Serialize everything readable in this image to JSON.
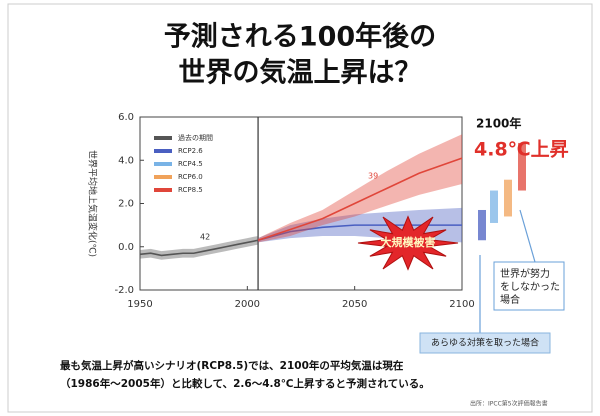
{
  "chart_data": {
    "type": "line",
    "title_lines": [
      "予測される100年後の",
      "世界の気温上昇は？"
    ],
    "y_label": "世界平均地上気温変化(℃)",
    "xlim": [
      1950,
      2100
    ],
    "xticks": [
      1950,
      2000,
      2050,
      2100
    ],
    "ylim": [
      -2,
      6
    ],
    "yticks": [
      {
        "value": 6,
        "label": "6.0"
      },
      {
        "value": 4,
        "label": "4.0"
      },
      {
        "value": 2,
        "label": "2.0"
      },
      {
        "value": 0,
        "label": "0.0"
      },
      {
        "value": -2,
        "label": "-2.0"
      }
    ],
    "divider_x": 2005,
    "series": [
      {
        "name": "過去の期間",
        "color": "#555555",
        "x": [
          1950,
          1955,
          1960,
          1965,
          1970,
          1975,
          1980,
          1985,
          1990,
          1995,
          2000,
          2005
        ],
        "values": [
          -0.35,
          -0.3,
          -0.4,
          -0.35,
          -0.3,
          -0.3,
          -0.2,
          -0.1,
          0.0,
          0.1,
          0.2,
          0.3
        ],
        "lower": [
          -0.55,
          -0.5,
          -0.6,
          -0.55,
          -0.5,
          -0.5,
          -0.4,
          -0.3,
          -0.2,
          -0.1,
          0.0,
          0.1
        ],
        "upper": [
          -0.15,
          -0.1,
          -0.2,
          -0.15,
          -0.1,
          -0.1,
          0.0,
          0.1,
          0.2,
          0.3,
          0.4,
          0.5
        ]
      },
      {
        "name": "RCP2.6",
        "color": "#4a5fc1",
        "x": [
          2005,
          2020,
          2035,
          2050,
          2065,
          2080,
          2100
        ],
        "values": [
          0.3,
          0.7,
          0.9,
          1.0,
          1.0,
          1.0,
          1.0
        ],
        "lower": [
          0.2,
          0.4,
          0.5,
          0.5,
          0.4,
          0.3,
          0.2
        ],
        "upper": [
          0.4,
          1.0,
          1.3,
          1.5,
          1.6,
          1.7,
          1.8
        ],
        "range_2100": [
          0.3,
          1.7
        ]
      },
      {
        "name": "RCP4.5",
        "color": "#79b3e6",
        "range_2100": [
          1.1,
          2.6
        ]
      },
      {
        "name": "RCP6.0",
        "color": "#f0a25a",
        "range_2100": [
          1.4,
          3.1
        ]
      },
      {
        "name": "RCP8.5",
        "color": "#e0463a",
        "x": [
          2005,
          2020,
          2035,
          2050,
          2065,
          2080,
          2100
        ],
        "values": [
          0.3,
          0.8,
          1.3,
          2.0,
          2.7,
          3.4,
          4.1
        ],
        "lower": [
          0.2,
          0.5,
          1.0,
          1.4,
          1.9,
          2.4,
          2.9
        ],
        "upper": [
          0.4,
          1.1,
          1.7,
          2.6,
          3.5,
          4.3,
          5.2
        ],
        "range_2100": [
          2.6,
          4.8
        ]
      }
    ],
    "model_counts": [
      "42",
      "39"
    ],
    "year_label": "2100年",
    "rise_label": "4.8℃上昇",
    "damage_label": "大規模被害",
    "no_effort_lines": [
      "世界が努力",
      "をしなかった",
      "場合"
    ],
    "all_measures_label": "あらゆる対策を取った場合",
    "caption_lines": [
      "最も気温上昇が高いシナリオ(RCP8.5)では、2100年の平均気温は現在",
      "（1986年～2005年）と比較して、2.6～4.8℃上昇すると予測されている。"
    ],
    "source": "出所：IPCC第5次評価報告書"
  }
}
